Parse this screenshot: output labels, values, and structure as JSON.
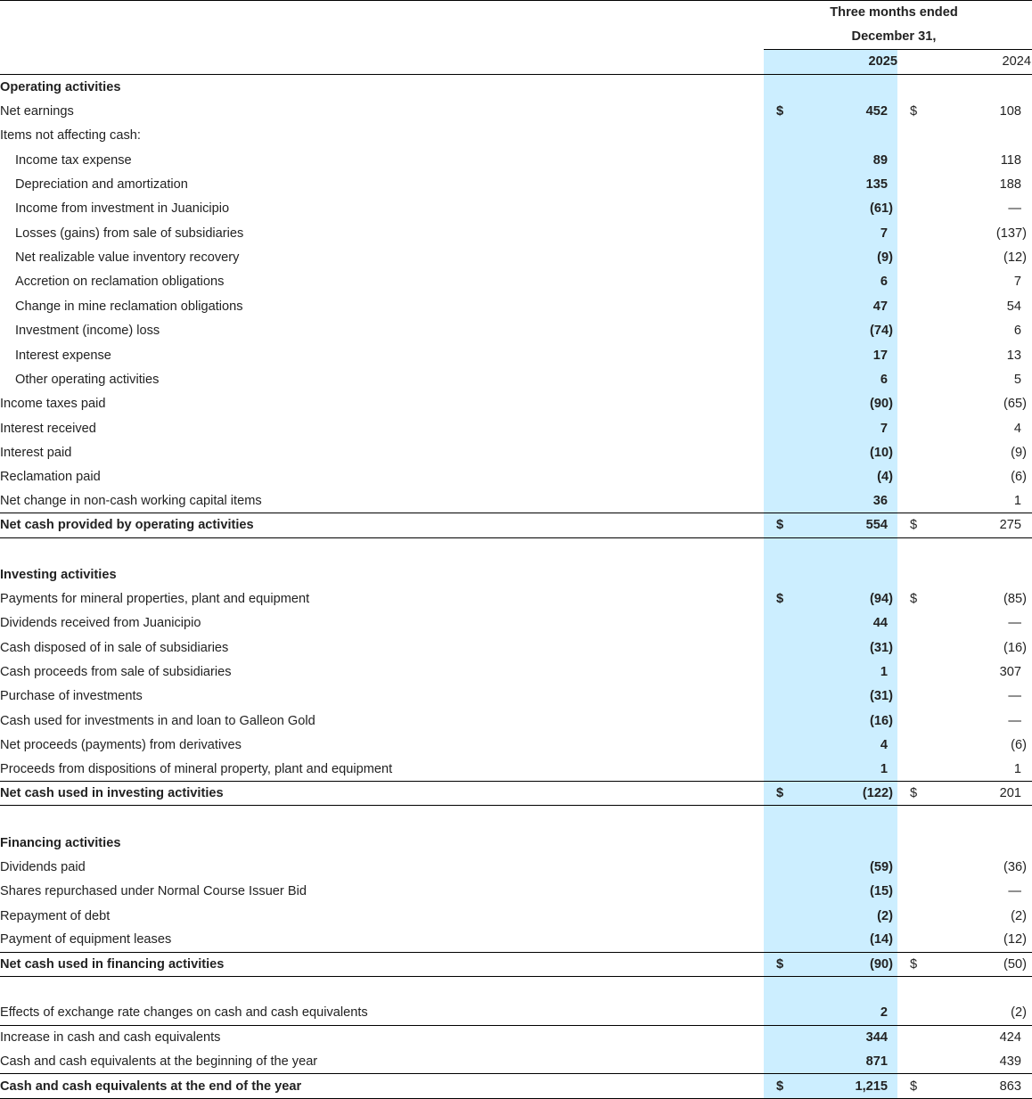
{
  "header": {
    "line1": "Three months ended",
    "line2": "December 31,",
    "year_current": "2025",
    "year_prior": "2024"
  },
  "colors": {
    "highlight_column": "#cceeff"
  },
  "rows": [
    {
      "label": "Operating activities",
      "type": "section"
    },
    {
      "label": "Net earnings",
      "c": "452",
      "p": "108",
      "dollar": true
    },
    {
      "label": "Items not affecting cash:"
    },
    {
      "label": "Income tax expense",
      "indent": true,
      "c": "89",
      "p": "118"
    },
    {
      "label": "Depreciation and amortization",
      "indent": true,
      "c": "135",
      "p": "188"
    },
    {
      "label": "Income from investment in Juanicipio",
      "indent": true,
      "c": "(61)",
      "p": "—"
    },
    {
      "label": "Losses (gains) from sale of subsidiaries",
      "indent": true,
      "c": "7",
      "p": "(137)"
    },
    {
      "label": "Net realizable value inventory recovery",
      "indent": true,
      "c": "(9)",
      "p": "(12)"
    },
    {
      "label": "Accretion on reclamation obligations",
      "indent": true,
      "c": "6",
      "p": "7"
    },
    {
      "label": "Change in mine reclamation obligations",
      "indent": true,
      "c": "47",
      "p": "54"
    },
    {
      "label": "Investment (income) loss",
      "indent": true,
      "c": "(74)",
      "p": "6"
    },
    {
      "label": "Interest expense",
      "indent": true,
      "c": "17",
      "p": "13"
    },
    {
      "label": "Other operating activities",
      "indent": true,
      "c": "6",
      "p": "5"
    },
    {
      "label": "Income taxes paid",
      "c": "(90)",
      "p": "(65)"
    },
    {
      "label": "Interest received",
      "c": "7",
      "p": "4"
    },
    {
      "label": "Interest paid",
      "c": "(10)",
      "p": "(9)"
    },
    {
      "label": "Reclamation paid",
      "c": "(4)",
      "p": "(6)"
    },
    {
      "label": "Net change in non-cash working capital items",
      "c": "36",
      "p": "1",
      "border": true
    },
    {
      "label": "Net cash provided by operating activities",
      "type": "total",
      "c": "554",
      "p": "275",
      "dollar": true,
      "border": true
    },
    {
      "type": "blank"
    },
    {
      "label": "Investing activities",
      "type": "section"
    },
    {
      "label": "Payments for mineral properties, plant and equipment",
      "c": "(94)",
      "p": "(85)",
      "dollar": true
    },
    {
      "label": "Dividends received from Juanicipio",
      "c": "44",
      "p": "—"
    },
    {
      "label": "Cash disposed of in sale of subsidiaries",
      "c": "(31)",
      "p": "(16)"
    },
    {
      "label": "Cash proceeds from sale of subsidiaries",
      "c": "1",
      "p": "307"
    },
    {
      "label": "Purchase of investments",
      "c": "(31)",
      "p": "—"
    },
    {
      "label": "Cash used for investments in and loan to Galleon Gold",
      "c": "(16)",
      "p": "—"
    },
    {
      "label": "Net proceeds (payments) from derivatives",
      "c": "4",
      "p": "(6)"
    },
    {
      "label": "Proceeds from dispositions of mineral property, plant and equipment",
      "c": "1",
      "p": "1",
      "border": true
    },
    {
      "label": "Net cash used in investing activities",
      "type": "total",
      "c": "(122)",
      "p": "201",
      "dollar": true,
      "border": true
    },
    {
      "type": "blank"
    },
    {
      "label": "Financing activities",
      "type": "section"
    },
    {
      "label": "Dividends paid",
      "c": "(59)",
      "p": "(36)"
    },
    {
      "label": "Shares repurchased under Normal Course Issuer Bid",
      "c": "(15)",
      "p": "—"
    },
    {
      "label": "Repayment of debt",
      "c": "(2)",
      "p": "(2)"
    },
    {
      "label": "Payment of equipment leases",
      "c": "(14)",
      "p": "(12)",
      "border": true
    },
    {
      "label": "Net cash used in financing activities",
      "type": "total",
      "c": "(90)",
      "p": "(50)",
      "dollar": true,
      "border": true
    },
    {
      "type": "blank"
    },
    {
      "label": "Effects of exchange rate changes on cash and cash equivalents",
      "c": "2",
      "p": "(2)",
      "border": true
    },
    {
      "label": "Increase in cash and cash equivalents",
      "c": "344",
      "p": "424"
    },
    {
      "label": "Cash and cash equivalents at the beginning of the year",
      "c": "871",
      "p": "439",
      "border": true
    },
    {
      "label": "Cash and cash equivalents at the end of the year",
      "type": "total",
      "c": "1,215",
      "p": "863",
      "dollar": true,
      "border": true
    }
  ],
  "currency_symbol": "$"
}
